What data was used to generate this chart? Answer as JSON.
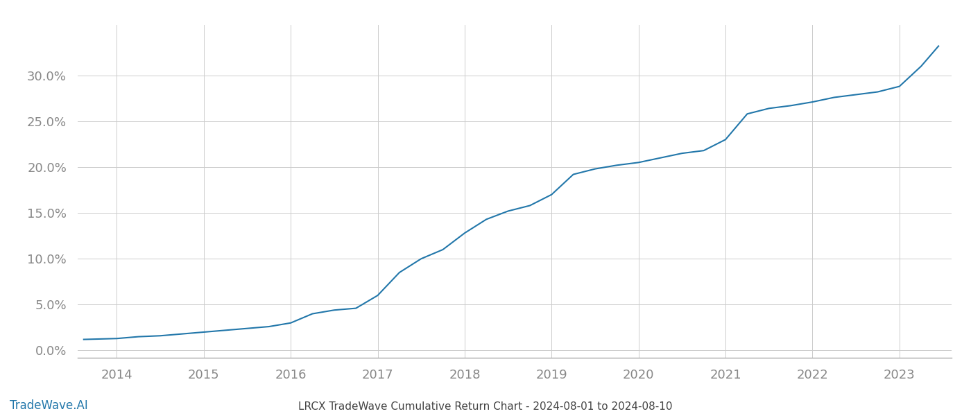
{
  "title": "LRCX TradeWave Cumulative Return Chart - 2024-08-01 to 2024-08-10",
  "watermark": "TradeWave.AI",
  "line_color": "#2277aa",
  "background_color": "#ffffff",
  "grid_color": "#cccccc",
  "x_years": [
    2014,
    2015,
    2016,
    2017,
    2018,
    2019,
    2020,
    2021,
    2022,
    2023
  ],
  "x_data": [
    2013.62,
    2014.0,
    2014.25,
    2014.5,
    2014.75,
    2015.0,
    2015.25,
    2015.5,
    2015.75,
    2016.0,
    2016.25,
    2016.5,
    2016.75,
    2017.0,
    2017.25,
    2017.5,
    2017.75,
    2018.0,
    2018.25,
    2018.5,
    2018.75,
    2019.0,
    2019.25,
    2019.5,
    2019.75,
    2020.0,
    2020.25,
    2020.5,
    2020.75,
    2021.0,
    2021.25,
    2021.5,
    2021.75,
    2022.0,
    2022.25,
    2022.5,
    2022.75,
    2023.0,
    2023.25,
    2023.45
  ],
  "y_data": [
    0.012,
    0.013,
    0.015,
    0.016,
    0.018,
    0.02,
    0.022,
    0.024,
    0.026,
    0.03,
    0.04,
    0.044,
    0.046,
    0.06,
    0.085,
    0.1,
    0.11,
    0.128,
    0.143,
    0.152,
    0.158,
    0.17,
    0.192,
    0.198,
    0.202,
    0.205,
    0.21,
    0.215,
    0.218,
    0.23,
    0.258,
    0.264,
    0.267,
    0.271,
    0.276,
    0.279,
    0.282,
    0.288,
    0.31,
    0.332
  ],
  "yticks": [
    0.0,
    0.05,
    0.1,
    0.15,
    0.2,
    0.25,
    0.3
  ],
  "ytick_labels": [
    "0.0%",
    "5.0%",
    "10.0%",
    "15.0%",
    "20.0%",
    "25.0%",
    "30.0%"
  ],
  "ylim": [
    -0.008,
    0.355
  ],
  "xlim": [
    2013.55,
    2023.6
  ]
}
